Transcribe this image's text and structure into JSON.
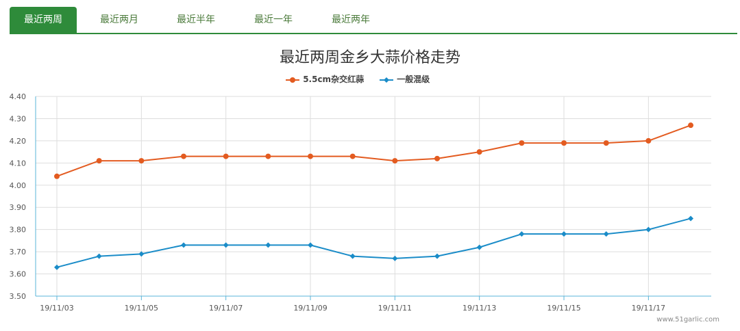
{
  "tabs": [
    {
      "label": "最近两周",
      "active": true
    },
    {
      "label": "最近两月",
      "active": false
    },
    {
      "label": "最近半年",
      "active": false
    },
    {
      "label": "最近一年",
      "active": false
    },
    {
      "label": "最近两年",
      "active": false
    }
  ],
  "watermark": "www.51garlic.com",
  "colors": {
    "accent": "#2e8b3a",
    "series1": "#e35b20",
    "series2": "#1a8cc8"
  },
  "chart_data": {
    "type": "line",
    "title": "最近两周金乡大蒜价格走势",
    "xlabel": "",
    "ylabel": "",
    "x": [
      "19/11/03",
      "19/11/04",
      "19/11/05",
      "19/11/06",
      "19/11/07",
      "19/11/08",
      "19/11/09",
      "19/11/10",
      "19/11/11",
      "19/11/12",
      "19/11/13",
      "19/11/14",
      "19/11/15",
      "19/11/16",
      "19/11/17",
      "19/11/18"
    ],
    "xticks": [
      "19/11/03",
      "19/11/05",
      "19/11/07",
      "19/11/09",
      "19/11/11",
      "19/11/13",
      "19/11/15",
      "19/11/17"
    ],
    "yticks": [
      "3.50",
      "3.60",
      "3.70",
      "3.80",
      "3.90",
      "4.00",
      "4.10",
      "4.20",
      "4.30",
      "4.40"
    ],
    "ylim": [
      3.5,
      4.4
    ],
    "grid": true,
    "legend_position": "top-center",
    "series": [
      {
        "name": "5.5cm杂交红蒜",
        "marker": "circle",
        "values": [
          4.04,
          4.11,
          4.11,
          4.13,
          4.13,
          4.13,
          4.13,
          4.13,
          4.11,
          4.12,
          4.15,
          4.19,
          4.19,
          4.19,
          4.2,
          4.27
        ]
      },
      {
        "name": "一般混级",
        "marker": "diamond",
        "values": [
          3.63,
          3.68,
          3.69,
          3.73,
          3.73,
          3.73,
          3.73,
          3.68,
          3.67,
          3.68,
          3.72,
          3.78,
          3.78,
          3.78,
          3.8,
          3.85
        ]
      }
    ]
  }
}
